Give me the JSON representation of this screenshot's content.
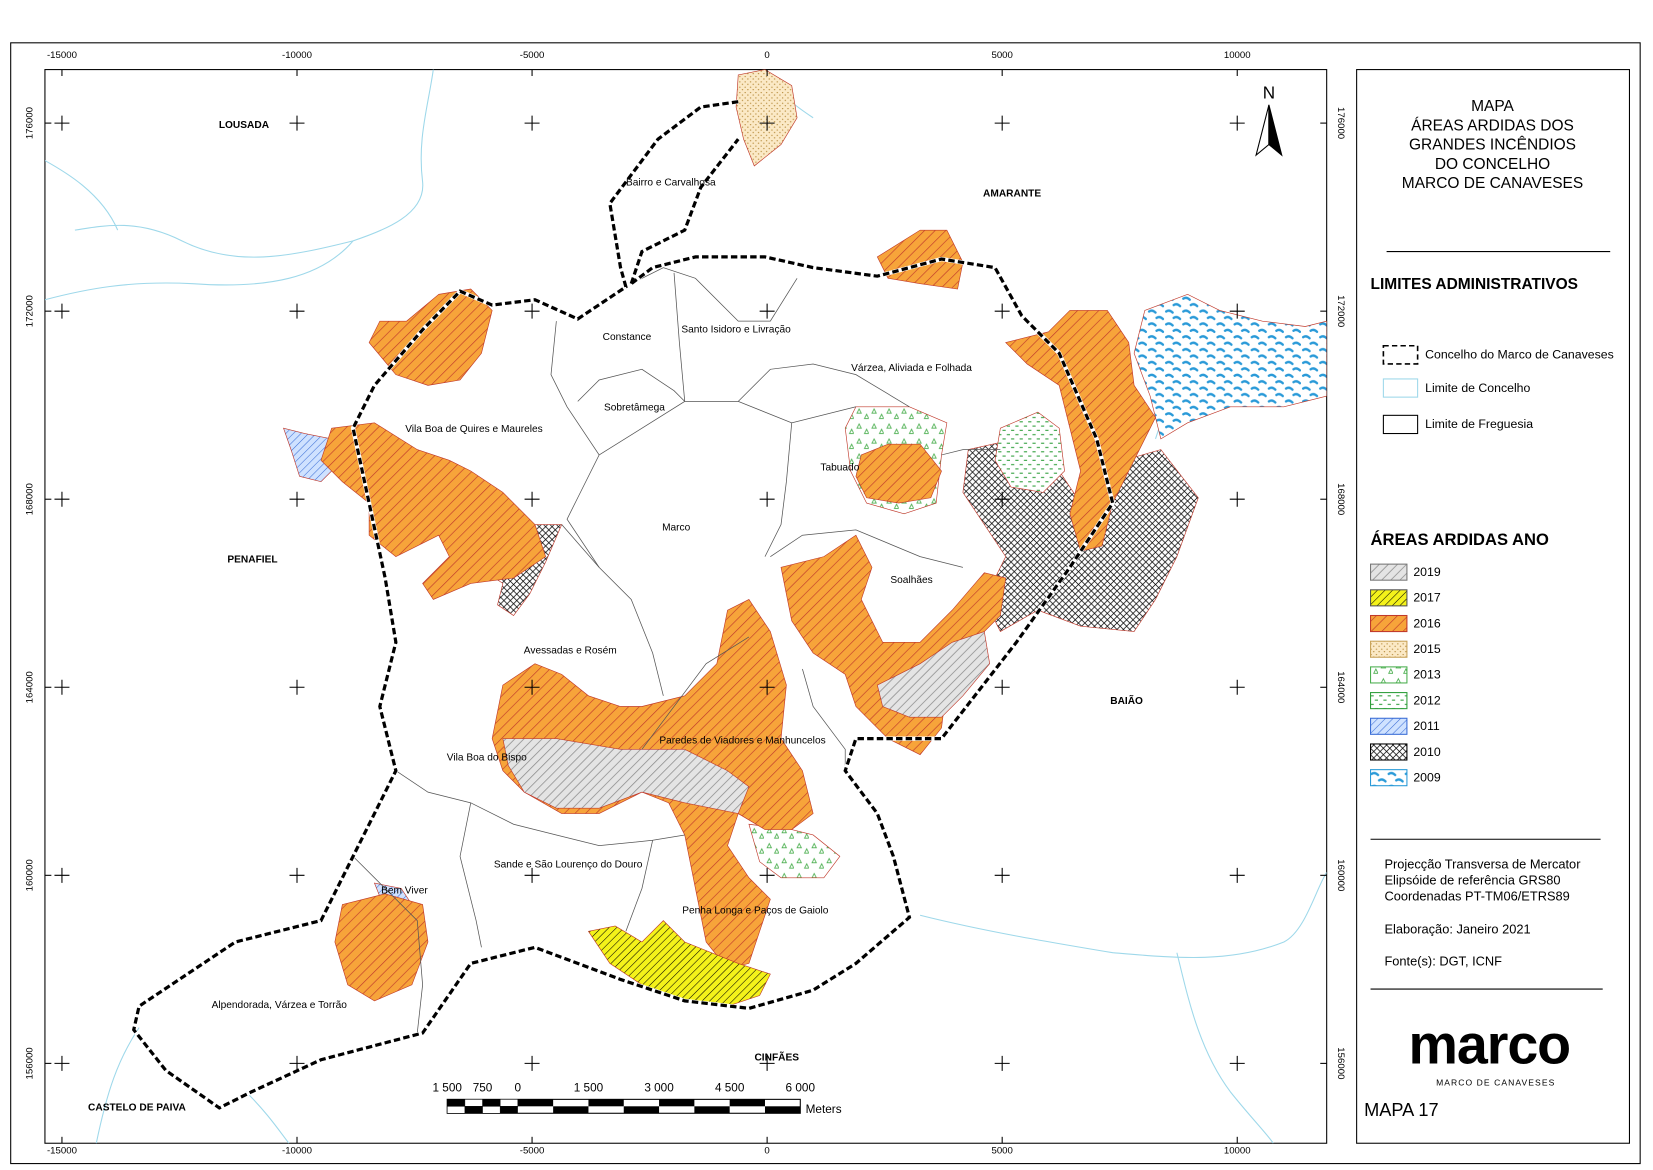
{
  "map": {
    "north": "N",
    "coordinates": {
      "x": [
        -15000,
        -10000,
        -5000,
        0,
        5000,
        10000
      ],
      "y": [
        176000,
        172000,
        168000,
        164000,
        160000,
        156000
      ]
    },
    "municipalities": [
      "LOUSADA",
      "AMARANTE",
      "PENAFIEL",
      "BAIÃO",
      "CINFÃES",
      "CASTELO DE PAIVA"
    ],
    "parishes": [
      "Bairro e Carvalhosa",
      "Constance",
      "Santo Isidoro e Livração",
      "Sobretâmega",
      "Várzea, Aliviada e Folhada",
      "Vila Boa de Quires e Maureles",
      "Tabuado",
      "Marco",
      "Soalhães",
      "Avessadas e Rosém",
      "Paredes de Viadores e Manhuncelos",
      "Vila Boa do Bispo",
      "Sande e São Lourenço do Douro",
      "Bem Viver",
      "Penha Longa e Paços de Gaiolo",
      "Alpendorada, Várzea e Torrão"
    ],
    "scale_bar": {
      "labels": [
        "1 500",
        "750",
        "0",
        "1 500",
        "3 000",
        "4 500",
        "6 000"
      ],
      "unit": "Meters"
    }
  },
  "legend": {
    "title_lines": [
      "MAPA",
      "ÁREAS ARDIDAS DOS",
      "GRANDES INCÊNDIOS",
      "DO CONCELHO",
      "MARCO DE CANAVESES"
    ],
    "limits_title": "LIMITES ADMINISTRATIVOS",
    "limits": [
      "Concelho do Marco de Canaveses",
      "Limite de Concelho",
      "Limite de Freguesia"
    ],
    "years_title": "ÁREAS ARDIDAS ANO",
    "years": [
      "2019",
      "2017",
      "2016",
      "2015",
      "2013",
      "2012",
      "2011",
      "2010",
      "2009"
    ],
    "notes": [
      "Projecção Transversa de Mercator",
      "Elipsóide de referência GRS80",
      "Coordenadas PT-TM06/ETRS89",
      "Elaboração: Janeiro 2021",
      "Fonte(s): DGT, ICNF"
    ],
    "logo": "marco",
    "logo_sub": "MARCO DE CANAVESES",
    "map_number": "MAPA 17"
  }
}
